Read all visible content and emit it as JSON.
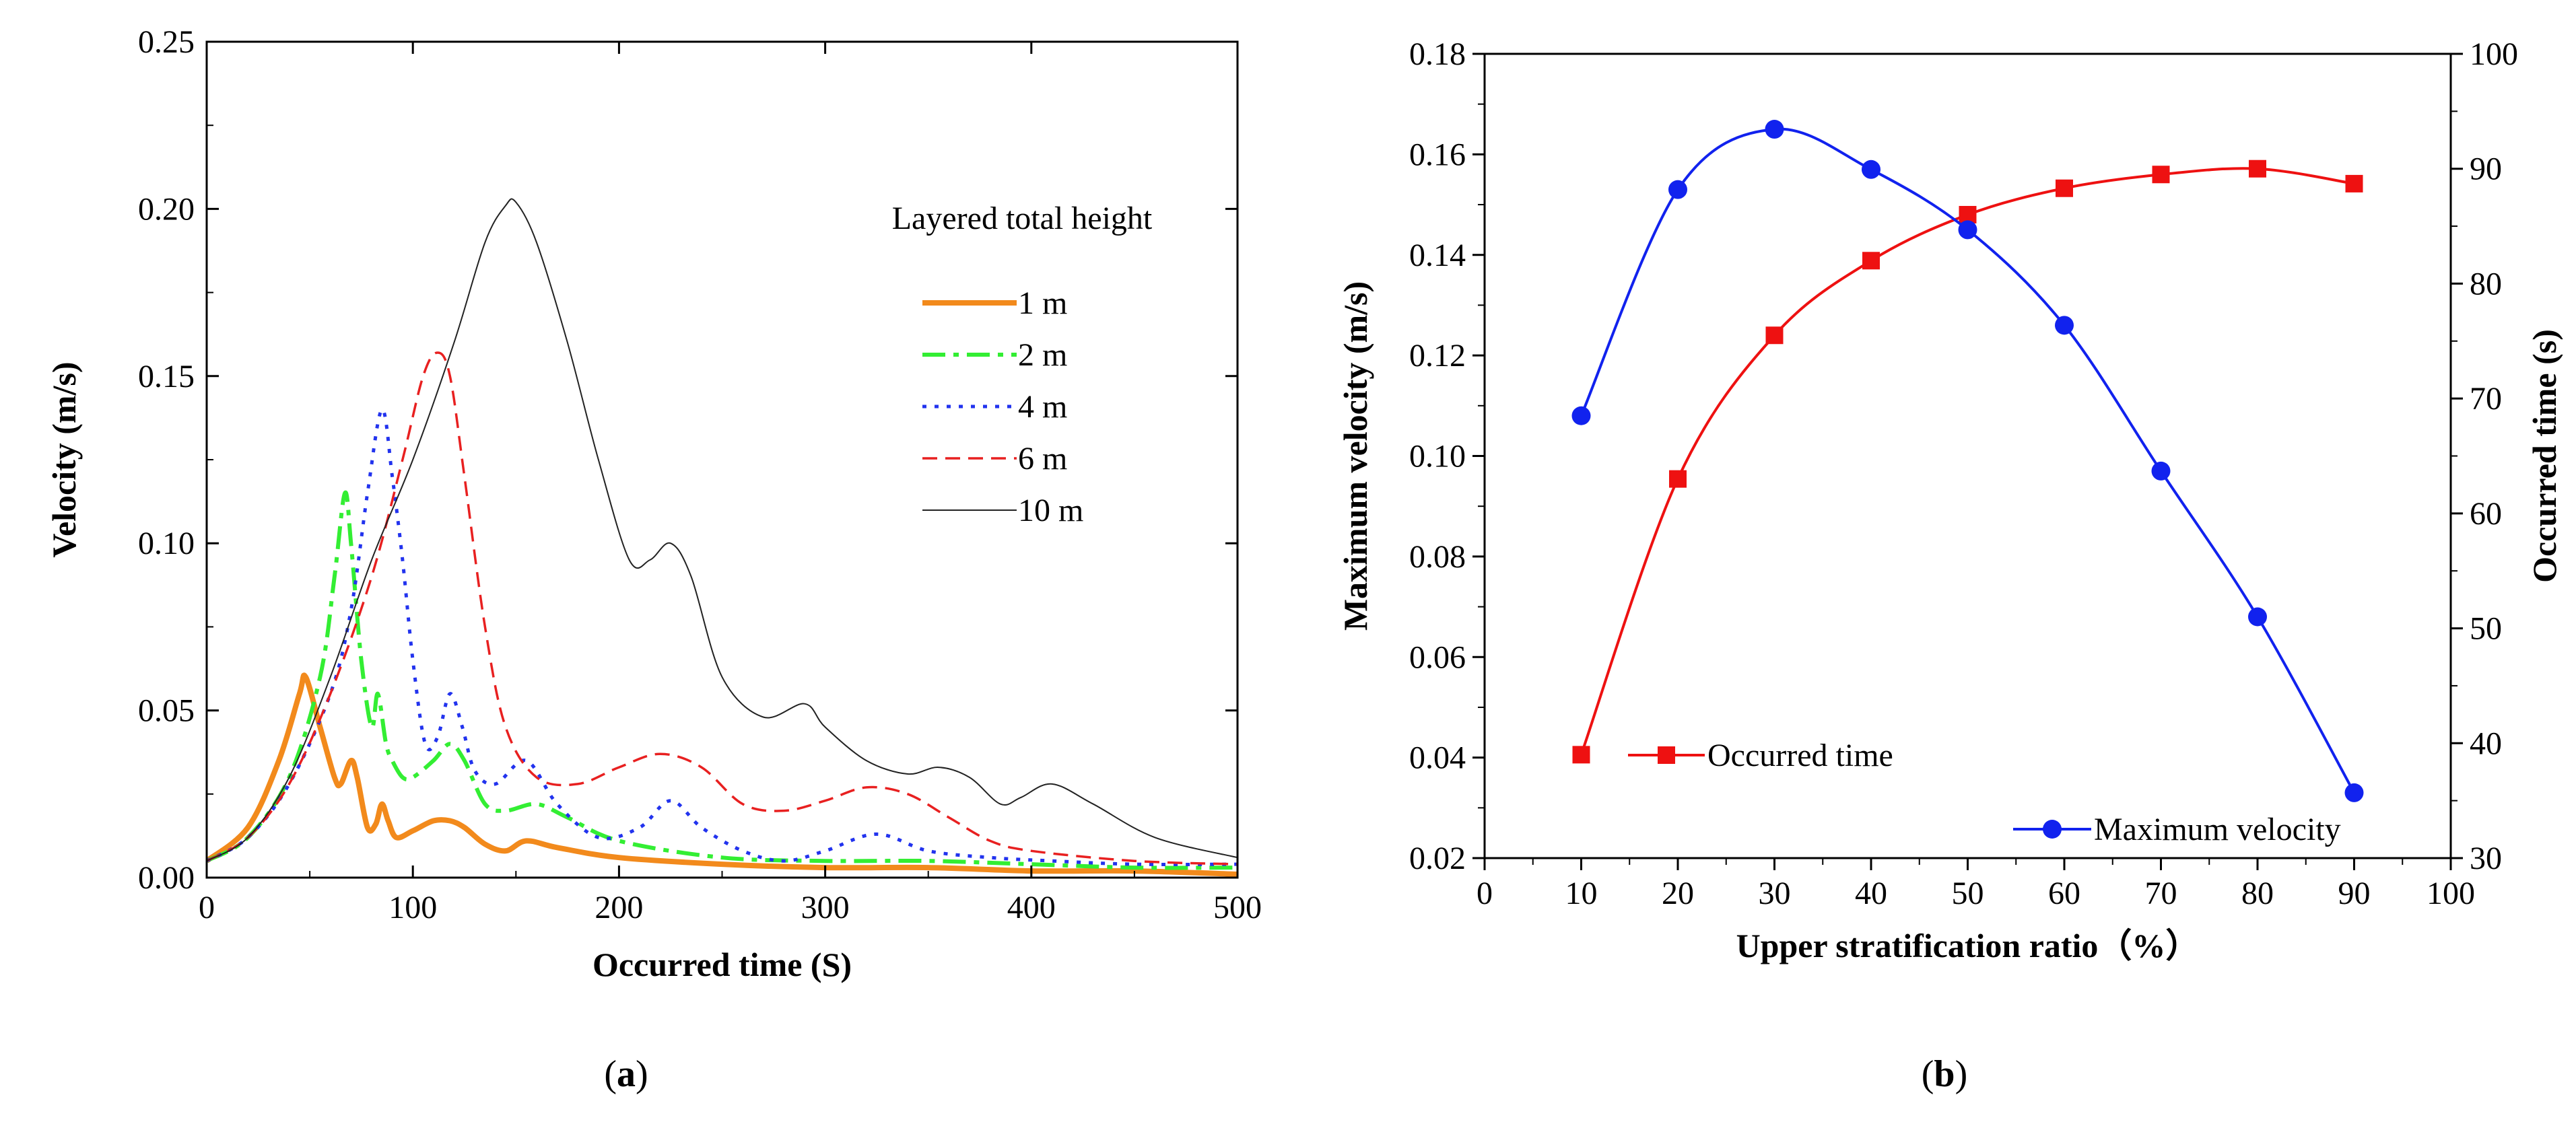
{
  "chart_data": [
    {
      "type": "line",
      "panel": "a",
      "xlabel": "Occurred time (S)",
      "ylabel": "Velocity (m/s)",
      "xlim": [
        0,
        500
      ],
      "ylim": [
        0,
        0.25
      ],
      "xticks": [
        "0",
        "100",
        "200",
        "300",
        "400",
        "500"
      ],
      "yticks": [
        "0.00",
        "0.05",
        "0.10",
        "0.15",
        "0.20",
        "0.25"
      ],
      "legend_title": "Layered total height",
      "series": [
        {
          "name": "1 m",
          "color": "#f28a1c",
          "style": "solid",
          "x": [
            0,
            20,
            35,
            45,
            48,
            55,
            62,
            65,
            70,
            73,
            78,
            82,
            85,
            88,
            92,
            100,
            110,
            118,
            125,
            135,
            145,
            155,
            170,
            200,
            250,
            300,
            350,
            400,
            450,
            500
          ],
          "y": [
            0.005,
            0.015,
            0.035,
            0.055,
            0.06,
            0.045,
            0.03,
            0.028,
            0.035,
            0.03,
            0.015,
            0.016,
            0.022,
            0.017,
            0.012,
            0.014,
            0.017,
            0.017,
            0.015,
            0.01,
            0.008,
            0.011,
            0.009,
            0.006,
            0.004,
            0.003,
            0.003,
            0.002,
            0.002,
            0.001
          ]
        },
        {
          "name": "2 m",
          "color": "#33ee33",
          "style": "dashdot",
          "x": [
            0,
            20,
            40,
            55,
            62,
            67,
            70,
            75,
            80,
            83,
            87,
            90,
            95,
            100,
            110,
            118,
            125,
            135,
            145,
            160,
            175,
            200,
            250,
            300,
            350,
            400,
            450,
            500
          ],
          "y": [
            0.005,
            0.012,
            0.03,
            0.06,
            0.09,
            0.115,
            0.1,
            0.065,
            0.045,
            0.055,
            0.04,
            0.035,
            0.03,
            0.03,
            0.035,
            0.04,
            0.035,
            0.022,
            0.02,
            0.022,
            0.018,
            0.011,
            0.006,
            0.005,
            0.005,
            0.004,
            0.003,
            0.003
          ]
        },
        {
          "name": "4 m",
          "color": "#2233ee",
          "style": "dot",
          "x": [
            0,
            20,
            40,
            60,
            70,
            78,
            85,
            90,
            95,
            100,
            106,
            112,
            118,
            124,
            130,
            140,
            155,
            170,
            190,
            210,
            225,
            240,
            260,
            280,
            300,
            325,
            350,
            380,
            410,
            450,
            500
          ],
          "y": [
            0.005,
            0.012,
            0.028,
            0.055,
            0.08,
            0.115,
            0.14,
            0.12,
            0.095,
            0.065,
            0.04,
            0.042,
            0.055,
            0.045,
            0.032,
            0.028,
            0.035,
            0.022,
            0.012,
            0.015,
            0.023,
            0.015,
            0.008,
            0.005,
            0.008,
            0.013,
            0.008,
            0.006,
            0.005,
            0.004,
            0.004
          ]
        },
        {
          "name": "6 m",
          "color": "#e82020",
          "style": "dash",
          "x": [
            0,
            20,
            40,
            60,
            80,
            95,
            105,
            112,
            118,
            125,
            135,
            145,
            160,
            180,
            200,
            220,
            240,
            260,
            280,
            300,
            320,
            340,
            360,
            380,
            400,
            450,
            500
          ],
          "y": [
            0.005,
            0.012,
            0.028,
            0.055,
            0.09,
            0.125,
            0.15,
            0.157,
            0.15,
            0.12,
            0.075,
            0.045,
            0.03,
            0.028,
            0.033,
            0.037,
            0.033,
            0.022,
            0.02,
            0.023,
            0.027,
            0.025,
            0.018,
            0.011,
            0.008,
            0.005,
            0.004
          ]
        },
        {
          "name": "10 m",
          "color": "#222222",
          "style": "solid-thin",
          "x": [
            0,
            20,
            40,
            60,
            80,
            100,
            120,
            135,
            145,
            150,
            160,
            175,
            190,
            205,
            215,
            225,
            235,
            250,
            270,
            290,
            300,
            320,
            340,
            355,
            370,
            385,
            395,
            410,
            430,
            460,
            500
          ],
          "y": [
            0.005,
            0.012,
            0.03,
            0.06,
            0.095,
            0.125,
            0.16,
            0.19,
            0.201,
            0.202,
            0.19,
            0.16,
            0.125,
            0.095,
            0.095,
            0.1,
            0.09,
            0.06,
            0.048,
            0.052,
            0.045,
            0.035,
            0.031,
            0.033,
            0.03,
            0.022,
            0.024,
            0.028,
            0.022,
            0.012,
            0.006
          ]
        }
      ]
    },
    {
      "type": "line",
      "panel": "b",
      "xlabel": "Upper stratification ratio（%）",
      "ylabel": "Maximum velocity (m/s)",
      "ylabel_right": "Occurred time (s)",
      "xlim": [
        0,
        100
      ],
      "ylim": [
        0.02,
        0.18
      ],
      "ylim_right": [
        30,
        100
      ],
      "xticks": [
        "0",
        "10",
        "20",
        "30",
        "40",
        "50",
        "60",
        "70",
        "80",
        "90",
        "100"
      ],
      "yticks": [
        "0.02",
        "0.04",
        "0.06",
        "0.08",
        "0.10",
        "0.12",
        "0.14",
        "0.16",
        "0.18"
      ],
      "yticks_right": [
        "30",
        "40",
        "50",
        "60",
        "70",
        "80",
        "90",
        "100"
      ],
      "series": [
        {
          "name": "Occurred time",
          "color": "#ee1111",
          "marker": "square",
          "axis": "right",
          "x": [
            10,
            20,
            30,
            40,
            50,
            60,
            70,
            80,
            90
          ],
          "y": [
            39,
            63,
            75.5,
            82,
            86,
            88.3,
            89.5,
            90,
            88.7
          ]
        },
        {
          "name": "Maximum velocity",
          "color": "#1122ee",
          "marker": "circle",
          "axis": "left",
          "x": [
            10,
            20,
            30,
            40,
            50,
            60,
            70,
            80,
            90
          ],
          "y": [
            0.108,
            0.153,
            0.165,
            0.157,
            0.145,
            0.126,
            0.097,
            0.068,
            0.033
          ]
        }
      ]
    }
  ],
  "panel_labels": [
    "(a)",
    "(b)"
  ]
}
